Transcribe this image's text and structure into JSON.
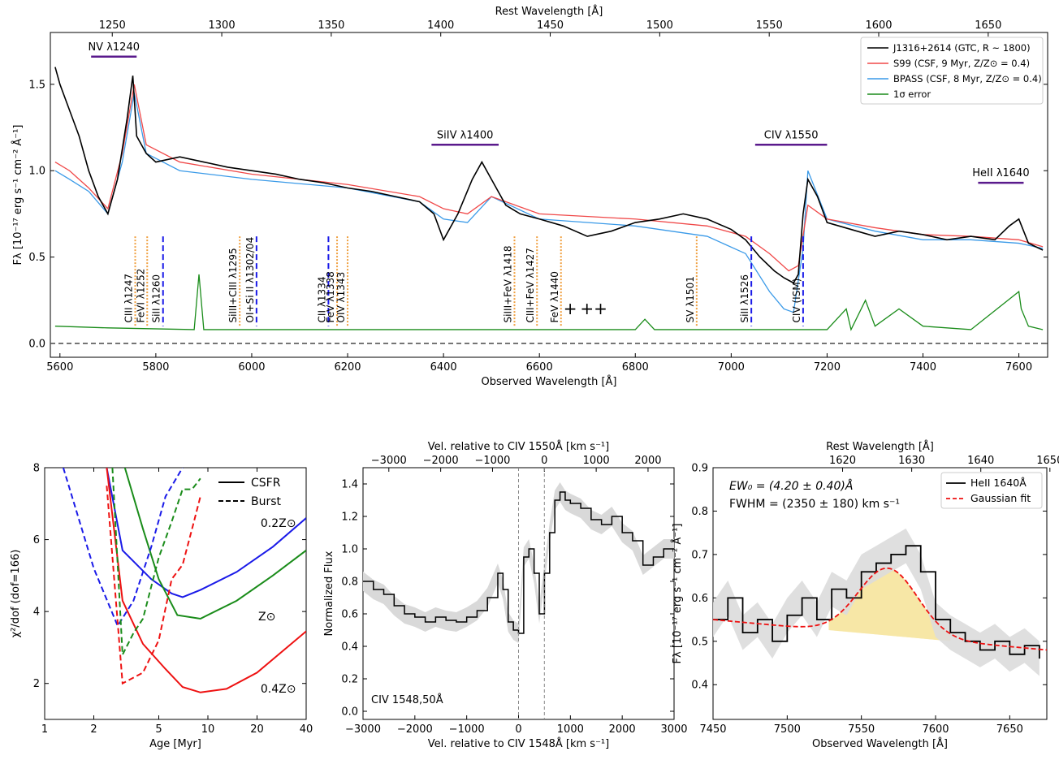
{
  "chart_data": [
    {
      "panel": "top",
      "type": "line",
      "top_axis_label": "Rest Wavelength [Å]",
      "xlabel": "Observed Wavelength [Å]",
      "ylabel": "Fλ [10⁻¹⁷ erg s⁻¹ cm⁻² Å⁻¹]",
      "xlim": [
        5580,
        7660
      ],
      "ylim": [
        -0.08,
        1.8
      ],
      "xticks": [
        5600,
        5800,
        6000,
        6200,
        6400,
        6600,
        6800,
        7000,
        7200,
        7400,
        7600
      ],
      "xtick_labels": [
        "5600",
        "5800",
        "6000",
        "6200",
        "6400",
        "6600",
        "6800",
        "7000",
        "7200",
        "7400",
        "7600"
      ],
      "yticks": [
        0.0,
        0.5,
        1.0,
        1.5
      ],
      "ytick_labels": [
        "0.0",
        "0.5",
        "1.0",
        "1.5"
      ],
      "top_xticks_rest": [
        1250,
        1300,
        1350,
        1400,
        1450,
        1500,
        1550,
        1600,
        1650
      ],
      "top_xtick_labels": [
        "1250",
        "1300",
        "1350",
        "1400",
        "1450",
        "1500",
        "1550",
        "1600",
        "1650"
      ],
      "legend": [
        {
          "label": "J1316+2614 (GTC, R ~ 1800)",
          "color": "#000000"
        },
        {
          "label": "S99 (CSF, 9 Myr, Z/Z⊙ = 0.4)",
          "color": "#f04848"
        },
        {
          "label": "BPASS (CSF, 8 Myr, Z/Z⊙ = 0.4)",
          "color": "#3a9ae8"
        },
        {
          "label": "1σ error",
          "color": "#1a8c1a"
        }
      ],
      "legend_position": "upper-right",
      "series": [
        {
          "name": "J1316+2614 (GTC, R ~ 1800)",
          "color": "#000000",
          "x": [
            5590,
            5600,
            5620,
            5640,
            5660,
            5680,
            5700,
            5720,
            5740,
            5752,
            5760,
            5780,
            5800,
            5850,
            5900,
            5950,
            6000,
            6050,
            6100,
            6150,
            6200,
            6250,
            6300,
            6350,
            6380,
            6400,
            6430,
            6460,
            6480,
            6500,
            6530,
            6560,
            6600,
            6650,
            6700,
            6750,
            6800,
            6850,
            6900,
            6950,
            7000,
            7030,
            7060,
            7090,
            7110,
            7130,
            7140,
            7150,
            7160,
            7180,
            7200,
            7250,
            7300,
            7350,
            7400,
            7450,
            7500,
            7550,
            7580,
            7600,
            7620,
            7650
          ],
          "y": [
            1.6,
            1.5,
            1.35,
            1.2,
            1.0,
            0.85,
            0.75,
            0.95,
            1.3,
            1.55,
            1.2,
            1.1,
            1.05,
            1.08,
            1.05,
            1.02,
            1.0,
            0.98,
            0.95,
            0.93,
            0.9,
            0.88,
            0.85,
            0.82,
            0.75,
            0.6,
            0.75,
            0.95,
            1.05,
            0.95,
            0.8,
            0.75,
            0.72,
            0.68,
            0.62,
            0.65,
            0.7,
            0.72,
            0.75,
            0.72,
            0.66,
            0.6,
            0.5,
            0.42,
            0.38,
            0.35,
            0.4,
            0.75,
            0.95,
            0.85,
            0.7,
            0.66,
            0.62,
            0.65,
            0.63,
            0.6,
            0.62,
            0.6,
            0.68,
            0.72,
            0.58,
            0.54
          ]
        },
        {
          "name": "S99 (CSF, 9 Myr, Z/Z⊙ = 0.4)",
          "color": "#f04848",
          "x": [
            5590,
            5620,
            5660,
            5700,
            5730,
            5755,
            5780,
            5850,
            6000,
            6200,
            6350,
            6400,
            6450,
            6500,
            6600,
            6800,
            6950,
            7030,
            7080,
            7120,
            7140,
            7160,
            7200,
            7300,
            7400,
            7500,
            7600,
            7650
          ],
          "y": [
            1.05,
            1.0,
            0.9,
            0.78,
            1.1,
            1.5,
            1.15,
            1.05,
            0.98,
            0.92,
            0.85,
            0.78,
            0.75,
            0.85,
            0.75,
            0.72,
            0.68,
            0.62,
            0.52,
            0.42,
            0.45,
            0.8,
            0.72,
            0.67,
            0.63,
            0.62,
            0.6,
            0.56
          ]
        },
        {
          "name": "BPASS (CSF, 8 Myr, Z/Z⊙ = 0.4)",
          "color": "#3a9ae8",
          "x": [
            5590,
            5620,
            5660,
            5700,
            5730,
            5755,
            5780,
            5850,
            6000,
            6200,
            6350,
            6400,
            6450,
            6500,
            6600,
            6800,
            6950,
            7030,
            7080,
            7110,
            7130,
            7150,
            7160,
            7200,
            7300,
            7400,
            7500,
            7600,
            7650
          ],
          "y": [
            1.0,
            0.95,
            0.88,
            0.75,
            1.05,
            1.45,
            1.1,
            1.0,
            0.95,
            0.9,
            0.82,
            0.72,
            0.7,
            0.85,
            0.72,
            0.68,
            0.62,
            0.52,
            0.3,
            0.2,
            0.18,
            0.55,
            1.0,
            0.72,
            0.65,
            0.6,
            0.6,
            0.58,
            0.55
          ]
        },
        {
          "name": "1σ error",
          "color": "#1a8c1a",
          "x": [
            5590,
            5700,
            5880,
            5890,
            5900,
            6000,
            6200,
            6400,
            6600,
            6800,
            6820,
            6840,
            7000,
            7200,
            7240,
            7250,
            7280,
            7300,
            7350,
            7400,
            7500,
            7600,
            7605,
            7620,
            7650
          ],
          "y": [
            0.1,
            0.09,
            0.08,
            0.4,
            0.08,
            0.08,
            0.08,
            0.08,
            0.08,
            0.08,
            0.14,
            0.08,
            0.08,
            0.08,
            0.2,
            0.08,
            0.25,
            0.1,
            0.2,
            0.1,
            0.08,
            0.3,
            0.2,
            0.1,
            0.08
          ]
        }
      ],
      "zero_line": 0.0,
      "feature_bars": [
        {
          "label": "NV λ1240",
          "x0": 5665,
          "x1": 5760,
          "y": 1.66,
          "color": "#5a1a8c"
        },
        {
          "label": "SiIV λ1400",
          "x0": 6375,
          "x1": 6515,
          "y": 1.15,
          "color": "#5a1a8c"
        },
        {
          "label": "CIV λ1550",
          "x0": 7050,
          "x1": 7200,
          "y": 1.15,
          "color": "#5a1a8c"
        },
        {
          "label": "HeII λ1640",
          "x0": 7515,
          "x1": 7610,
          "y": 0.93,
          "color": "#5a1a8c"
        }
      ],
      "line_markers": [
        {
          "label": "CIII λ1247",
          "x": 5757,
          "style": "dotted",
          "color": "#f0a040"
        },
        {
          "label": "FeVI λ1252",
          "x": 5782,
          "style": "dotted",
          "color": "#f0a040"
        },
        {
          "label": "SiII λ1260",
          "x": 5815,
          "style": "dashed",
          "color": "#1a1ae8"
        },
        {
          "label": "SiIII+CIII λ1295",
          "x": 5975,
          "style": "dotted",
          "color": "#f0a040"
        },
        {
          "label": "OI+Si II λ1302/04",
          "x": 6010,
          "style": "dashed",
          "color": "#1a1ae8"
        },
        {
          "label": "CII λ1334",
          "x": 6160,
          "style": "dashed",
          "color": "#1a1ae8"
        },
        {
          "label": "FeV λ1338",
          "x": 6178,
          "style": "dotted",
          "color": "#f0a040"
        },
        {
          "label": "OIV λ1343",
          "x": 6200,
          "style": "dotted",
          "color": "#f0a040"
        },
        {
          "label": "SiIII+FeV λ1418",
          "x": 6548,
          "style": "dotted",
          "color": "#f0a040"
        },
        {
          "label": "CIII+FeV λ1427",
          "x": 6595,
          "style": "dotted",
          "color": "#f0a040"
        },
        {
          "label": "FeV λ1440",
          "x": 6645,
          "style": "dotted",
          "color": "#f0a040"
        },
        {
          "label": "SV λ1501",
          "x": 6928,
          "style": "dotted",
          "color": "#f0a040"
        },
        {
          "label": "SiII λ1526",
          "x": 7042,
          "style": "dashed",
          "color": "#1a1ae8"
        },
        {
          "label": "CIV (ISM)",
          "x": 7150,
          "style": "dashed",
          "color": "#1a1ae8"
        }
      ],
      "plus_markers": [
        "+",
        "++"
      ]
    },
    {
      "panel": "bottom-left",
      "type": "line",
      "xlabel": "Age [Myr]",
      "ylabel": "χ²/dof (dof=166)",
      "xscale": "log",
      "xlim": [
        1,
        40
      ],
      "ylim": [
        1,
        8
      ],
      "xticks": [
        1,
        2,
        5,
        10,
        20,
        40
      ],
      "xtick_labels": [
        "1",
        "2",
        "5",
        "10",
        "20",
        "40"
      ],
      "yticks": [
        2,
        4,
        6,
        8
      ],
      "ytick_labels": [
        "2",
        "4",
        "6",
        "8"
      ],
      "legend": [
        {
          "label": "CSFR",
          "style": "solid"
        },
        {
          "label": "Burst",
          "style": "dashed"
        }
      ],
      "series": [
        {
          "name": "0.2Z⊙",
          "style": "solid",
          "color": "#1a1ae8",
          "x": [
            2.4,
            3,
            4.5,
            6,
            7,
            9,
            15,
            25,
            40
          ],
          "y": [
            8.0,
            5.7,
            4.9,
            4.5,
            4.4,
            4.6,
            5.1,
            5.8,
            6.6
          ]
        },
        {
          "name": "Z⊙",
          "style": "solid",
          "color": "#1a8c1a",
          "x": [
            3.1,
            4,
            5,
            6.5,
            9,
            15,
            25,
            40
          ],
          "y": [
            8.0,
            6.3,
            4.9,
            3.9,
            3.8,
            4.3,
            5.0,
            5.7
          ]
        },
        {
          "name": "0.4Z⊙",
          "style": "solid",
          "color": "#ee1111",
          "x": [
            2.4,
            3,
            4,
            5.5,
            7,
            9,
            13,
            20,
            40
          ],
          "y": [
            8.0,
            4.3,
            3.1,
            2.4,
            1.9,
            1.75,
            1.85,
            2.3,
            3.45
          ]
        },
        {
          "name": "0.2Z⊙ burst",
          "style": "dashed",
          "color": "#1a1ae8",
          "x": [
            1.3,
            2,
            2.8,
            3.5,
            4.5,
            5.5,
            7
          ],
          "y": [
            8.0,
            5.2,
            3.6,
            4.3,
            5.8,
            7.2,
            8.0
          ]
        },
        {
          "name": "Z⊙ burst",
          "style": "dashed",
          "color": "#1a8c1a",
          "x": [
            2.6,
            3,
            3.5,
            4,
            5,
            6,
            7,
            8,
            9
          ],
          "y": [
            8.0,
            2.8,
            3.4,
            3.8,
            5.5,
            6.5,
            7.4,
            7.4,
            7.7
          ]
        },
        {
          "name": "0.4Z⊙ burst",
          "style": "dashed",
          "color": "#ee1111",
          "x": [
            2.4,
            3,
            4,
            5,
            6,
            7,
            8,
            9
          ],
          "y": [
            7.5,
            2.0,
            2.3,
            3.2,
            4.9,
            5.3,
            6.3,
            7.2
          ]
        }
      ],
      "curve_labels": [
        {
          "label": "0.2Z⊙",
          "color": "#1a1ae8"
        },
        {
          "label": "Z⊙",
          "color": "#1a8c1a"
        },
        {
          "label": "0.4Z⊙",
          "color": "#ee1111"
        }
      ]
    },
    {
      "panel": "bottom-middle",
      "type": "line",
      "top_axis_label": "Vel. relative to CIV 1550Å [km s⁻¹]",
      "xlabel": "Vel. relative to CIV 1548Å [km s⁻¹]",
      "ylabel": "Normalized Flux",
      "xlim": [
        -3000,
        3000
      ],
      "ylim": [
        -0.05,
        1.5
      ],
      "xticks": [
        -3000,
        -2000,
        -1000,
        0,
        1000,
        2000,
        3000
      ],
      "xtick_labels": [
        "−3000",
        "−2000",
        "−1000",
        "0",
        "1000",
        "2000",
        "3000"
      ],
      "top_xticks": [
        -3000,
        -2000,
        -1000,
        0,
        1000,
        2000
      ],
      "top_xtick_labels": [
        "−3000",
        "−2000",
        "−1000",
        "0",
        "1000",
        "2000"
      ],
      "top_offset_kms": -498,
      "yticks": [
        0.0,
        0.2,
        0.4,
        0.6,
        0.8,
        1.0,
        1.2,
        1.4
      ],
      "ytick_labels": [
        "0.0",
        "0.2",
        "0.4",
        "0.6",
        "0.8",
        "1.0",
        "1.2",
        "1.4"
      ],
      "vlines": [
        0,
        498
      ],
      "annotation": "CIV 1548,50Å",
      "series": [
        {
          "name": "normalized flux",
          "style": "steps",
          "x": [
            -3000,
            -2800,
            -2600,
            -2400,
            -2200,
            -2000,
            -1800,
            -1600,
            -1400,
            -1200,
            -1000,
            -800,
            -600,
            -400,
            -300,
            -200,
            -100,
            0,
            100,
            200,
            300,
            400,
            500,
            600,
            700,
            800,
            900,
            1000,
            1200,
            1400,
            1600,
            1800,
            2000,
            2200,
            2400,
            2600,
            2800,
            3000
          ],
          "y": [
            0.8,
            0.75,
            0.72,
            0.65,
            0.6,
            0.58,
            0.55,
            0.58,
            0.56,
            0.55,
            0.58,
            0.62,
            0.7,
            0.85,
            0.75,
            0.55,
            0.5,
            0.48,
            0.95,
            1.0,
            0.85,
            0.6,
            0.85,
            1.1,
            1.3,
            1.35,
            1.3,
            1.28,
            1.25,
            1.18,
            1.15,
            1.2,
            1.1,
            1.05,
            0.9,
            0.95,
            1.0,
            1.0
          ]
        }
      ]
    },
    {
      "panel": "bottom-right",
      "type": "line",
      "top_axis_label": "Rest Wavelength [Å]",
      "xlabel": "Observed Wavelength [Å]",
      "ylabel": "Fλ [10⁻¹⁷ erg s⁻¹ cm⁻² Å⁻¹]",
      "xlim": [
        7450,
        7675
      ],
      "ylim": [
        0.32,
        0.9
      ],
      "xticks": [
        7450,
        7500,
        7550,
        7600,
        7650
      ],
      "xtick_labels": [
        "7450",
        "7500",
        "7550",
        "7600",
        "7650"
      ],
      "top_xticks_rest": [
        1620,
        1630,
        1640,
        1650,
        1660
      ],
      "top_xtick_labels": [
        "1620",
        "1630",
        "1640",
        "1650",
        "1660"
      ],
      "yticks": [
        0.4,
        0.5,
        0.6,
        0.7,
        0.8,
        0.9
      ],
      "ytick_labels": [
        "0.4",
        "0.5",
        "0.6",
        "0.7",
        "0.8",
        "0.9"
      ],
      "annotations": [
        "EW₀ = (4.20 ± 0.40)Å",
        "FWHM = (2350 ± 180) km s⁻¹"
      ],
      "legend": [
        {
          "label": "HeII 1640Å",
          "color": "#000000",
          "style": "solid"
        },
        {
          "label": "Gaussian fit",
          "color": "#ee1111",
          "style": "dashed"
        }
      ],
      "series": [
        {
          "name": "HeII 1640Å",
          "style": "steps",
          "x": [
            7450,
            7460,
            7470,
            7480,
            7490,
            7500,
            7510,
            7520,
            7530,
            7540,
            7550,
            7560,
            7570,
            7580,
            7590,
            7600,
            7610,
            7620,
            7630,
            7640,
            7650,
            7660,
            7670
          ],
          "y": [
            0.55,
            0.6,
            0.52,
            0.55,
            0.5,
            0.56,
            0.6,
            0.55,
            0.62,
            0.6,
            0.66,
            0.68,
            0.7,
            0.72,
            0.66,
            0.55,
            0.52,
            0.5,
            0.48,
            0.5,
            0.47,
            0.49,
            0.46
          ]
        },
        {
          "name": "Gaussian fit",
          "style": "dashed",
          "color": "#ee1111",
          "continuum": [
            [
              7450,
              0.55
            ],
            [
              7675,
              0.48
            ]
          ],
          "center": 7568,
          "sigma": 20,
          "amp": 0.155
        }
      ],
      "fill_region": [
        7528,
        7610
      ]
    }
  ]
}
